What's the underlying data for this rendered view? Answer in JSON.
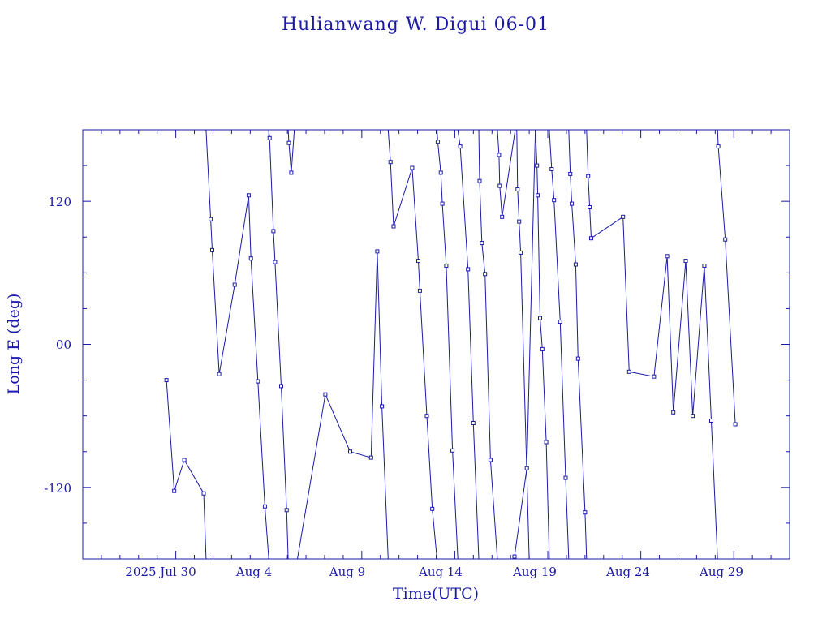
{
  "chart_data": {
    "type": "line",
    "title": "Hulianwang W. Digui 06-01",
    "xlabel": "Time(UTC)",
    "ylabel": "Long E (deg)",
    "x_tick_labels": [
      "2025 Jul 30",
      "Aug  4",
      "Aug  9",
      "Aug 14",
      "Aug 19",
      "Aug 24",
      "Aug 29"
    ],
    "y_tick_labels": [
      "120",
      "00",
      "-120"
    ],
    "xlim": [
      "2025-07-25",
      "2025-09-01"
    ],
    "ylim": [
      -180,
      180
    ],
    "marker": "square",
    "grid": false,
    "line_color": "#1a1aa6",
    "series": [
      {
        "points": [
          [
            "2025-07-29T12:00",
            -30
          ],
          [
            "2025-07-29T22:00",
            -123
          ],
          [
            "2025-07-30T11:00",
            -97
          ],
          [
            "2025-07-31T12:00",
            -125
          ],
          [
            "2025-07-31T15:00",
            -180
          ]
        ]
      },
      {
        "points": [
          [
            "2025-07-31T15:00",
            180
          ],
          [
            "2025-07-31T21:00",
            105
          ],
          [
            "2025-07-31T23:00",
            79
          ],
          [
            "2025-08-01T08:00",
            -25
          ],
          [
            "2025-08-02T04:00",
            50
          ],
          [
            "2025-08-02T22:00",
            125
          ],
          [
            "2025-08-03T01:00",
            72
          ],
          [
            "2025-08-03T10:00",
            -31
          ],
          [
            "2025-08-03T19:00",
            -136
          ],
          [
            "2025-08-04T00:00",
            -180
          ]
        ]
      },
      {
        "points": [
          [
            "2025-08-04T00:00",
            180
          ],
          [
            "2025-08-04T01:00",
            173
          ],
          [
            "2025-08-04T06:00",
            95
          ],
          [
            "2025-08-04T08:00",
            69
          ],
          [
            "2025-08-04T16:00",
            -35
          ],
          [
            "2025-08-04T23:00",
            -139
          ],
          [
            "2025-08-05T01:00",
            -180
          ]
        ]
      },
      {
        "points": [
          [
            "2025-08-05T01:00",
            180
          ],
          [
            "2025-08-05T02:00",
            169
          ],
          [
            "2025-08-05T05:00",
            144
          ],
          [
            "2025-08-05T09:00",
            180
          ]
        ]
      },
      {
        "points": [
          [
            "2025-08-05T13:00",
            -180
          ],
          [
            "2025-08-07T01:00",
            -42
          ],
          [
            "2025-08-08T09:00",
            -90
          ],
          [
            "2025-08-09T12:00",
            -95
          ],
          [
            "2025-08-09T20:00",
            78
          ],
          [
            "2025-08-10T02:00",
            -52
          ],
          [
            "2025-08-10T10:00",
            -180
          ]
        ]
      },
      {
        "points": [
          [
            "2025-08-10T10:00",
            180
          ],
          [
            "2025-08-10T13:00",
            153
          ],
          [
            "2025-08-10T17:00",
            99
          ],
          [
            "2025-08-11T17:00",
            148
          ],
          [
            "2025-08-12T01:00",
            70
          ],
          [
            "2025-08-12T03:00",
            45
          ],
          [
            "2025-08-12T12:00",
            -60
          ],
          [
            "2025-08-12T19:00",
            -138
          ],
          [
            "2025-08-13T01:00",
            -180
          ]
        ]
      },
      {
        "points": [
          [
            "2025-08-13T01:00",
            180
          ],
          [
            "2025-08-13T02:00",
            170
          ],
          [
            "2025-08-13T06:00",
            144
          ],
          [
            "2025-08-13T08:00",
            118
          ],
          [
            "2025-08-13T13:00",
            66
          ],
          [
            "2025-08-13T21:00",
            -89
          ],
          [
            "2025-08-14T04:00",
            -180
          ]
        ]
      },
      {
        "points": [
          [
            "2025-08-14T04:00",
            180
          ],
          [
            "2025-08-14T07:00",
            166
          ],
          [
            "2025-08-14T17:00",
            63
          ],
          [
            "2025-08-15T00:00",
            -66
          ],
          [
            "2025-08-15T07:00",
            -180
          ]
        ]
      },
      {
        "points": [
          [
            "2025-08-15T07:00",
            180
          ],
          [
            "2025-08-15T08:00",
            137
          ],
          [
            "2025-08-15T11:00",
            85
          ],
          [
            "2025-08-15T15:00",
            59
          ],
          [
            "2025-08-15T22:00",
            -97
          ],
          [
            "2025-08-16T07:00",
            -180
          ]
        ]
      },
      {
        "points": [
          [
            "2025-08-16T07:00",
            180
          ],
          [
            "2025-08-16T09:00",
            159
          ],
          [
            "2025-08-16T10:00",
            133
          ],
          [
            "2025-08-16T13:00",
            107
          ],
          [
            "2025-08-17T06:00",
            180
          ]
        ]
      },
      {
        "points": [
          [
            "2025-08-17T08:00",
            180
          ],
          [
            "2025-08-17T09:00",
            130
          ],
          [
            "2025-08-17T11:00",
            103
          ],
          [
            "2025-08-17T13:00",
            77
          ],
          [
            "2025-08-18T00:00",
            -180
          ]
        ]
      },
      {
        "points": [
          [
            "2025-08-17T05:00",
            -178
          ],
          [
            "2025-08-17T21:00",
            -104
          ],
          [
            "2025-08-18T08:00",
            180
          ]
        ]
      },
      {
        "points": [
          [
            "2025-08-18T08:00",
            180
          ],
          [
            "2025-08-18T10:00",
            150
          ],
          [
            "2025-08-18T11:00",
            125
          ],
          [
            "2025-08-18T14:00",
            22
          ],
          [
            "2025-08-18T17:00",
            -4
          ],
          [
            "2025-08-18T22:00",
            -82
          ],
          [
            "2025-08-19T02:00",
            -180
          ]
        ]
      },
      {
        "points": [
          [
            "2025-08-19T02:00",
            180
          ],
          [
            "2025-08-19T05:00",
            147
          ],
          [
            "2025-08-19T08:00",
            121
          ],
          [
            "2025-08-19T16:00",
            19
          ],
          [
            "2025-08-19T23:00",
            -112
          ],
          [
            "2025-08-20T03:00",
            -180
          ]
        ]
      },
      {
        "points": [
          [
            "2025-08-20T03:00",
            180
          ],
          [
            "2025-08-20T05:00",
            143
          ],
          [
            "2025-08-20T07:00",
            118
          ],
          [
            "2025-08-20T12:00",
            67
          ],
          [
            "2025-08-20T15:00",
            -12
          ],
          [
            "2025-08-21T00:00",
            -141
          ],
          [
            "2025-08-21T02:00",
            -180
          ]
        ]
      },
      {
        "points": [
          [
            "2025-08-21T02:00",
            180
          ],
          [
            "2025-08-21T04:00",
            141
          ],
          [
            "2025-08-21T06:00",
            115
          ],
          [
            "2025-08-21T08:00",
            89
          ],
          [
            "2025-08-23T01:00",
            107
          ],
          [
            "2025-08-23T09:00",
            -23
          ],
          [
            "2025-08-24T17:00",
            -27
          ],
          [
            "2025-08-25T10:00",
            74
          ],
          [
            "2025-08-25T18:00",
            -57
          ],
          [
            "2025-08-26T10:00",
            70
          ],
          [
            "2025-08-26T19:00",
            -60
          ],
          [
            "2025-08-27T10:00",
            66
          ],
          [
            "2025-08-27T19:00",
            -64
          ],
          [
            "2025-08-28T03:00",
            -180
          ]
        ]
      },
      {
        "points": [
          [
            "2025-08-28T03:00",
            180
          ],
          [
            "2025-08-28T04:00",
            166
          ],
          [
            "2025-08-28T13:00",
            88
          ],
          [
            "2025-08-29T02:00",
            -67
          ]
        ]
      }
    ]
  }
}
